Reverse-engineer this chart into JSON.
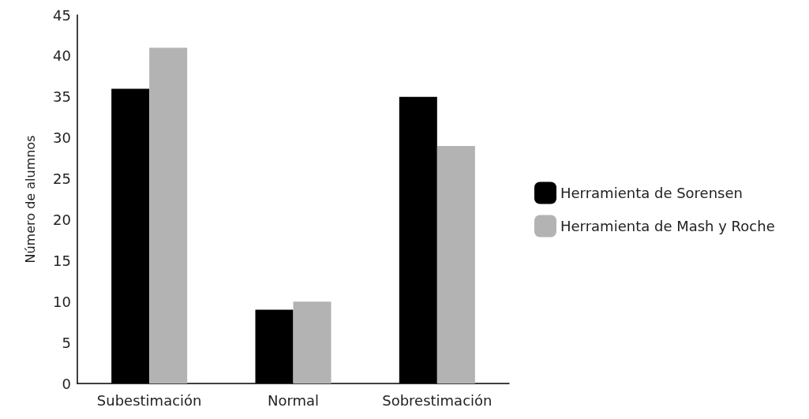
{
  "chart_data": {
    "type": "bar",
    "ylabel": "Número de alumnos",
    "categories": [
      "Subestimación",
      "Normal",
      "Sobrestimación"
    ],
    "series": [
      {
        "name": "Herramienta de Sorensen",
        "color": "#000000",
        "values": [
          36,
          9,
          35
        ]
      },
      {
        "name": "Herramienta de Mash y Roche",
        "color": "#b3b3b3",
        "values": [
          41,
          10,
          29
        ]
      }
    ],
    "ylim": [
      0,
      45
    ],
    "yticks": [
      0,
      5,
      10,
      15,
      20,
      25,
      30,
      35,
      40,
      45
    ],
    "grid": false,
    "legend": "right"
  }
}
